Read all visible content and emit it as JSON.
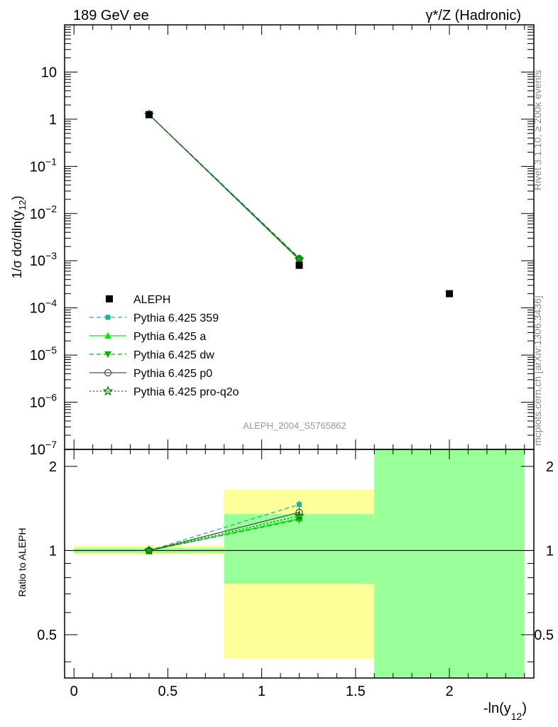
{
  "header": {
    "left": "189 GeV ee",
    "right": "γ*/Z (Hadronic)"
  },
  "side_labels": {
    "rivet": "Rivet 3.1.10, ≥ 200k events",
    "mcplots": "mcplots.cern.ch [arXiv:1306.3436]"
  },
  "watermark": "ALEPH_2004_S5765862",
  "colors": {
    "data": "#000000",
    "p359": "#20b09a",
    "pa": "#00ee00",
    "pdw": "#00bb00",
    "pp0": "#505050",
    "pproq2o": "#007700",
    "band_yellow": "#ffff99",
    "band_green": "#99ff99"
  },
  "chart_data": [
    {
      "type": "line",
      "y_scale": "log",
      "xlim": [
        -0.05,
        2.45
      ],
      "ylim": [
        1e-07,
        100
      ],
      "ylabel": "1/σ dσ/dln(y12)",
      "yticks": [
        {
          "v": 1e-07,
          "base": "10",
          "exp": "−7"
        },
        {
          "v": 1e-06,
          "base": "10",
          "exp": "−6"
        },
        {
          "v": 1e-05,
          "base": "10",
          "exp": "−5"
        },
        {
          "v": 0.0001,
          "base": "10",
          "exp": "−4"
        },
        {
          "v": 0.001,
          "base": "10",
          "exp": "−3"
        },
        {
          "v": 0.01,
          "base": "10",
          "exp": "−2"
        },
        {
          "v": 0.1,
          "base": "10",
          "exp": "−1"
        },
        {
          "v": 1,
          "base": "1",
          "exp": ""
        },
        {
          "v": 10,
          "base": "10",
          "exp": ""
        }
      ],
      "data": {
        "name": "ALEPH",
        "x": [
          0.4,
          1.2,
          2.0
        ],
        "y": [
          1.25,
          0.0008,
          0.0002
        ]
      },
      "series": [
        {
          "name": "Pythia 6.425 359",
          "key": "p359",
          "x": [
            0.4,
            1.2
          ],
          "y": [
            1.26,
            0.00115
          ]
        },
        {
          "name": "Pythia 6.425 a",
          "key": "pa",
          "x": [
            0.4,
            1.2
          ],
          "y": [
            1.25,
            0.00105
          ]
        },
        {
          "name": "Pythia 6.425 dw",
          "key": "pdw",
          "x": [
            0.4,
            1.2
          ],
          "y": [
            1.25,
            0.00104
          ]
        },
        {
          "name": "Pythia 6.425 p0",
          "key": "pp0",
          "x": [
            0.4,
            1.2
          ],
          "y": [
            1.25,
            0.0011
          ]
        },
        {
          "name": "Pythia 6.425 pro-q2o",
          "key": "pproq2o",
          "x": [
            0.4,
            1.2
          ],
          "y": [
            1.25,
            0.00107
          ]
        }
      ],
      "legend_position": "lower-left"
    },
    {
      "type": "line",
      "y_scale": "log",
      "xlabel": "-ln(y12)",
      "ylabel": "Ratio to ALEPH",
      "xlim": [
        -0.05,
        2.45
      ],
      "ylim": [
        0.35,
        2.3
      ],
      "xticks": [
        {
          "v": 0,
          "label": "0"
        },
        {
          "v": 0.5,
          "label": "0.5"
        },
        {
          "v": 1,
          "label": "1"
        },
        {
          "v": 1.5,
          "label": "1.5"
        },
        {
          "v": 2,
          "label": "2"
        }
      ],
      "yticks": [
        {
          "v": 0.5,
          "label": "0.5"
        },
        {
          "v": 1,
          "label": "1"
        },
        {
          "v": 2,
          "label": "2"
        }
      ],
      "bands": [
        {
          "x0": 0.0,
          "x1": 0.8,
          "yellow": [
            0.965,
            1.04
          ],
          "green": [
            0.98,
            1.02
          ]
        },
        {
          "x0": 0.8,
          "x1": 1.6,
          "yellow": [
            0.41,
            1.65
          ],
          "green": [
            0.76,
            1.35
          ]
        },
        {
          "x0": 1.6,
          "x1": 2.4,
          "yellow": [
            0.35,
            2.3
          ],
          "green": [
            0.35,
            2.3
          ]
        }
      ],
      "series": [
        {
          "name": "Pythia 6.425 359",
          "key": "p359",
          "x": [
            0.4,
            1.2
          ],
          "y": [
            1.0,
            1.46
          ],
          "err": [
            0.0,
            0.05
          ]
        },
        {
          "name": "Pythia 6.425 a",
          "key": "pa",
          "x": [
            0.4,
            1.2
          ],
          "y": [
            1.0,
            1.3
          ],
          "err": [
            0.0,
            0.04
          ]
        },
        {
          "name": "Pythia 6.425 dw",
          "key": "pdw",
          "x": [
            0.4,
            1.2
          ],
          "y": [
            1.0,
            1.29
          ],
          "err": [
            0.0,
            0.04
          ]
        },
        {
          "name": "Pythia 6.425 p0",
          "key": "pp0",
          "x": [
            0.4,
            1.2
          ],
          "y": [
            1.0,
            1.37
          ],
          "err": [
            0.0,
            0.05
          ]
        },
        {
          "name": "Pythia 6.425 pro-q2o",
          "key": "pproq2o",
          "x": [
            0.4,
            1.2
          ],
          "y": [
            1.0,
            1.33
          ],
          "err": [
            0.0,
            0.04
          ]
        }
      ]
    }
  ]
}
